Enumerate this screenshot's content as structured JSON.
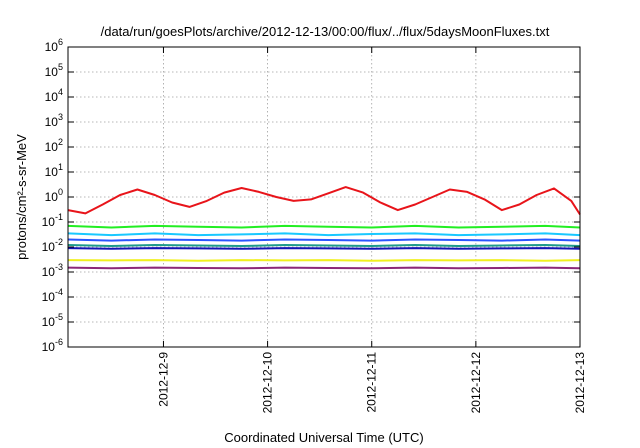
{
  "chart_data": {
    "type": "line",
    "title": "/data/run/goesPlots/archive/2012-12-13/00:00/flux/../flux/5daysMoonFluxes.txt",
    "xlabel": "Coordinated Universal Time (UTC)",
    "ylabel": "protons/cm²-s-sr-MeV",
    "y_scale": "log",
    "ylim": [
      1e-06,
      1000000.0
    ],
    "xlim": [
      "2012-12-08 02:00",
      "2012-12-13 00:00"
    ],
    "grid": true,
    "legend": "none",
    "y_ticks": [
      {
        "value": 1e-06,
        "base": "10",
        "exp": "-6"
      },
      {
        "value": 1e-05,
        "base": "10",
        "exp": "-5"
      },
      {
        "value": 0.0001,
        "base": "10",
        "exp": "-4"
      },
      {
        "value": 0.001,
        "base": "10",
        "exp": "-3"
      },
      {
        "value": 0.01,
        "base": "10",
        "exp": "-2"
      },
      {
        "value": 0.1,
        "base": "10",
        "exp": "-1"
      },
      {
        "value": 1,
        "base": "10",
        "exp": "0"
      },
      {
        "value": 10,
        "base": "10",
        "exp": "1"
      },
      {
        "value": 100,
        "base": "10",
        "exp": "2"
      },
      {
        "value": 1000,
        "base": "10",
        "exp": "3"
      },
      {
        "value": 10000,
        "base": "10",
        "exp": "4"
      },
      {
        "value": 100000,
        "base": "10",
        "exp": "5"
      },
      {
        "value": 1000000,
        "base": "10",
        "exp": "6"
      }
    ],
    "x_ticks": [
      {
        "value": "2012-12-09",
        "label": "2012-12-9"
      },
      {
        "value": "2012-12-10",
        "label": "2012-12-10"
      },
      {
        "value": "2012-12-11",
        "label": "2012-12-11"
      },
      {
        "value": "2012-12-12",
        "label": "2012-12-12"
      },
      {
        "value": "2012-12-13",
        "label": "2012-12-13"
      }
    ],
    "series": [
      {
        "color": "#e8141a",
        "x": [
          "2012-12-08 02:00",
          "2012-12-08 06:00",
          "2012-12-08 10:00",
          "2012-12-08 14:00",
          "2012-12-08 18:00",
          "2012-12-08 22:00",
          "2012-12-09 02:00",
          "2012-12-09 06:00",
          "2012-12-09 10:00",
          "2012-12-09 14:00",
          "2012-12-09 18:00",
          "2012-12-09 22:00",
          "2012-12-10 02:00",
          "2012-12-10 06:00",
          "2012-12-10 10:00",
          "2012-12-10 14:00",
          "2012-12-10 18:00",
          "2012-12-10 22:00",
          "2012-12-11 02:00",
          "2012-12-11 06:00",
          "2012-12-11 10:00",
          "2012-12-11 14:00",
          "2012-12-11 18:00",
          "2012-12-11 22:00",
          "2012-12-12 02:00",
          "2012-12-12 06:00",
          "2012-12-12 10:00",
          "2012-12-12 14:00",
          "2012-12-12 18:00",
          "2012-12-12 22:00",
          "2012-12-13 00:00"
        ],
        "values": [
          0.3,
          0.22,
          0.5,
          1.2,
          2.0,
          1.2,
          0.6,
          0.4,
          0.7,
          1.5,
          2.3,
          1.6,
          1.0,
          0.7,
          0.8,
          1.4,
          2.5,
          1.5,
          0.6,
          0.3,
          0.5,
          1.0,
          2.0,
          1.6,
          0.8,
          0.3,
          0.5,
          1.2,
          2.2,
          0.7,
          0.2
        ]
      },
      {
        "color": "#22ee22",
        "x": [
          "2012-12-08 02:00",
          "2012-12-08 12:00",
          "2012-12-08 22:00",
          "2012-12-09 08:00",
          "2012-12-09 18:00",
          "2012-12-10 04:00",
          "2012-12-10 14:00",
          "2012-12-11 00:00",
          "2012-12-11 10:00",
          "2012-12-11 20:00",
          "2012-12-12 06:00",
          "2012-12-12 16:00",
          "2012-12-13 00:00"
        ],
        "values": [
          0.07,
          0.06,
          0.07,
          0.065,
          0.06,
          0.07,
          0.065,
          0.06,
          0.07,
          0.06,
          0.065,
          0.07,
          0.06
        ]
      },
      {
        "color": "#19c8ff",
        "x": [
          "2012-12-08 02:00",
          "2012-12-08 12:00",
          "2012-12-08 22:00",
          "2012-12-09 08:00",
          "2012-12-09 18:00",
          "2012-12-10 04:00",
          "2012-12-10 14:00",
          "2012-12-11 00:00",
          "2012-12-11 10:00",
          "2012-12-11 20:00",
          "2012-12-12 06:00",
          "2012-12-12 16:00",
          "2012-12-13 00:00"
        ],
        "values": [
          0.035,
          0.03,
          0.035,
          0.03,
          0.032,
          0.035,
          0.03,
          0.033,
          0.035,
          0.03,
          0.032,
          0.035,
          0.03
        ]
      },
      {
        "color": "#2a55ff",
        "x": [
          "2012-12-08 02:00",
          "2012-12-08 12:00",
          "2012-12-08 22:00",
          "2012-12-09 08:00",
          "2012-12-09 18:00",
          "2012-12-10 04:00",
          "2012-12-10 14:00",
          "2012-12-11 00:00",
          "2012-12-11 10:00",
          "2012-12-11 20:00",
          "2012-12-12 06:00",
          "2012-12-12 16:00",
          "2012-12-13 00:00"
        ],
        "values": [
          0.02,
          0.018,
          0.02,
          0.019,
          0.018,
          0.02,
          0.019,
          0.018,
          0.02,
          0.019,
          0.018,
          0.02,
          0.018
        ]
      },
      {
        "color": "#1e9a8c",
        "x": [
          "2012-12-08 02:00",
          "2012-12-08 12:00",
          "2012-12-08 22:00",
          "2012-12-09 08:00",
          "2012-12-09 18:00",
          "2012-12-10 04:00",
          "2012-12-10 14:00",
          "2012-12-11 00:00",
          "2012-12-11 10:00",
          "2012-12-11 20:00",
          "2012-12-12 06:00",
          "2012-12-12 16:00",
          "2012-12-13 00:00"
        ],
        "values": [
          0.012,
          0.011,
          0.012,
          0.0115,
          0.011,
          0.012,
          0.0115,
          0.011,
          0.012,
          0.011,
          0.0115,
          0.012,
          0.011
        ]
      },
      {
        "color": "#1414b4",
        "x": [
          "2012-12-08 02:00",
          "2012-12-08 12:00",
          "2012-12-08 22:00",
          "2012-12-09 08:00",
          "2012-12-09 18:00",
          "2012-12-10 04:00",
          "2012-12-10 14:00",
          "2012-12-11 00:00",
          "2012-12-11 10:00",
          "2012-12-11 20:00",
          "2012-12-12 06:00",
          "2012-12-12 16:00",
          "2012-12-13 00:00"
        ],
        "values": [
          0.009,
          0.0085,
          0.009,
          0.0088,
          0.0085,
          0.009,
          0.0088,
          0.0085,
          0.009,
          0.0085,
          0.0088,
          0.009,
          0.0085
        ]
      },
      {
        "color": "#f0f01e",
        "x": [
          "2012-12-08 02:00",
          "2012-12-08 12:00",
          "2012-12-08 22:00",
          "2012-12-09 08:00",
          "2012-12-09 18:00",
          "2012-12-10 04:00",
          "2012-12-10 14:00",
          "2012-12-11 00:00",
          "2012-12-11 10:00",
          "2012-12-11 20:00",
          "2012-12-12 06:00",
          "2012-12-12 16:00",
          "2012-12-13 00:00"
        ],
        "values": [
          0.003,
          0.0029,
          0.003,
          0.0028,
          0.003,
          0.0029,
          0.003,
          0.0028,
          0.003,
          0.0029,
          0.003,
          0.0028,
          0.003
        ]
      },
      {
        "color": "#8c2878",
        "x": [
          "2012-12-08 02:00",
          "2012-12-08 12:00",
          "2012-12-08 22:00",
          "2012-12-09 08:00",
          "2012-12-09 18:00",
          "2012-12-10 04:00",
          "2012-12-10 14:00",
          "2012-12-11 00:00",
          "2012-12-11 10:00",
          "2012-12-11 20:00",
          "2012-12-12 06:00",
          "2012-12-12 16:00",
          "2012-12-13 00:00"
        ],
        "values": [
          0.0015,
          0.0014,
          0.0015,
          0.00145,
          0.0014,
          0.0015,
          0.00145,
          0.0014,
          0.0015,
          0.0014,
          0.00145,
          0.0015,
          0.0014
        ]
      }
    ]
  }
}
